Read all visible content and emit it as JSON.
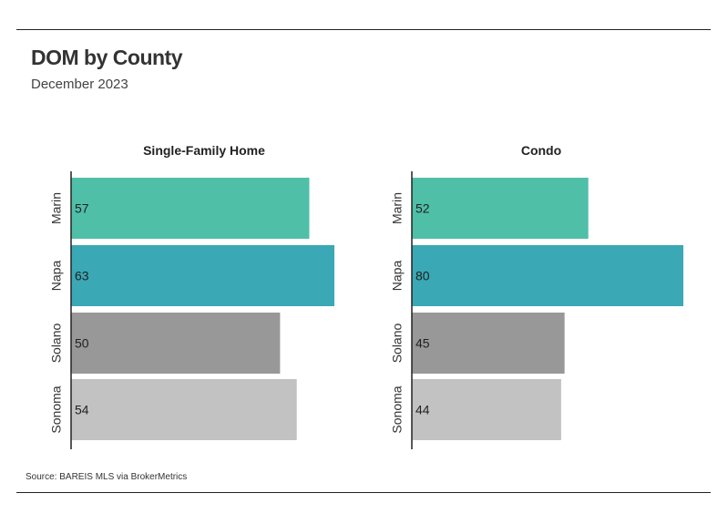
{
  "title": "DOM by County",
  "subtitle": "December 2023",
  "source": "Source:  BAREIS MLS via BrokerMetrics",
  "chart_data": [
    {
      "type": "bar",
      "orientation": "horizontal",
      "title": "Single-Family Home",
      "categories": [
        "Marin",
        "Napa",
        "Solano",
        "Sonoma"
      ],
      "values": [
        57,
        63,
        50,
        54
      ],
      "colors": [
        "#4fbfa8",
        "#3aa8b5",
        "#989898",
        "#c2c2c2"
      ],
      "xlim": [
        0,
        63
      ]
    },
    {
      "type": "bar",
      "orientation": "horizontal",
      "title": "Condo",
      "categories": [
        "Marin",
        "Napa",
        "Solano",
        "Sonoma"
      ],
      "values": [
        52,
        80,
        45,
        44
      ],
      "colors": [
        "#4fbfa8",
        "#3aa8b5",
        "#989898",
        "#c2c2c2"
      ],
      "xlim": [
        0,
        80
      ]
    }
  ]
}
